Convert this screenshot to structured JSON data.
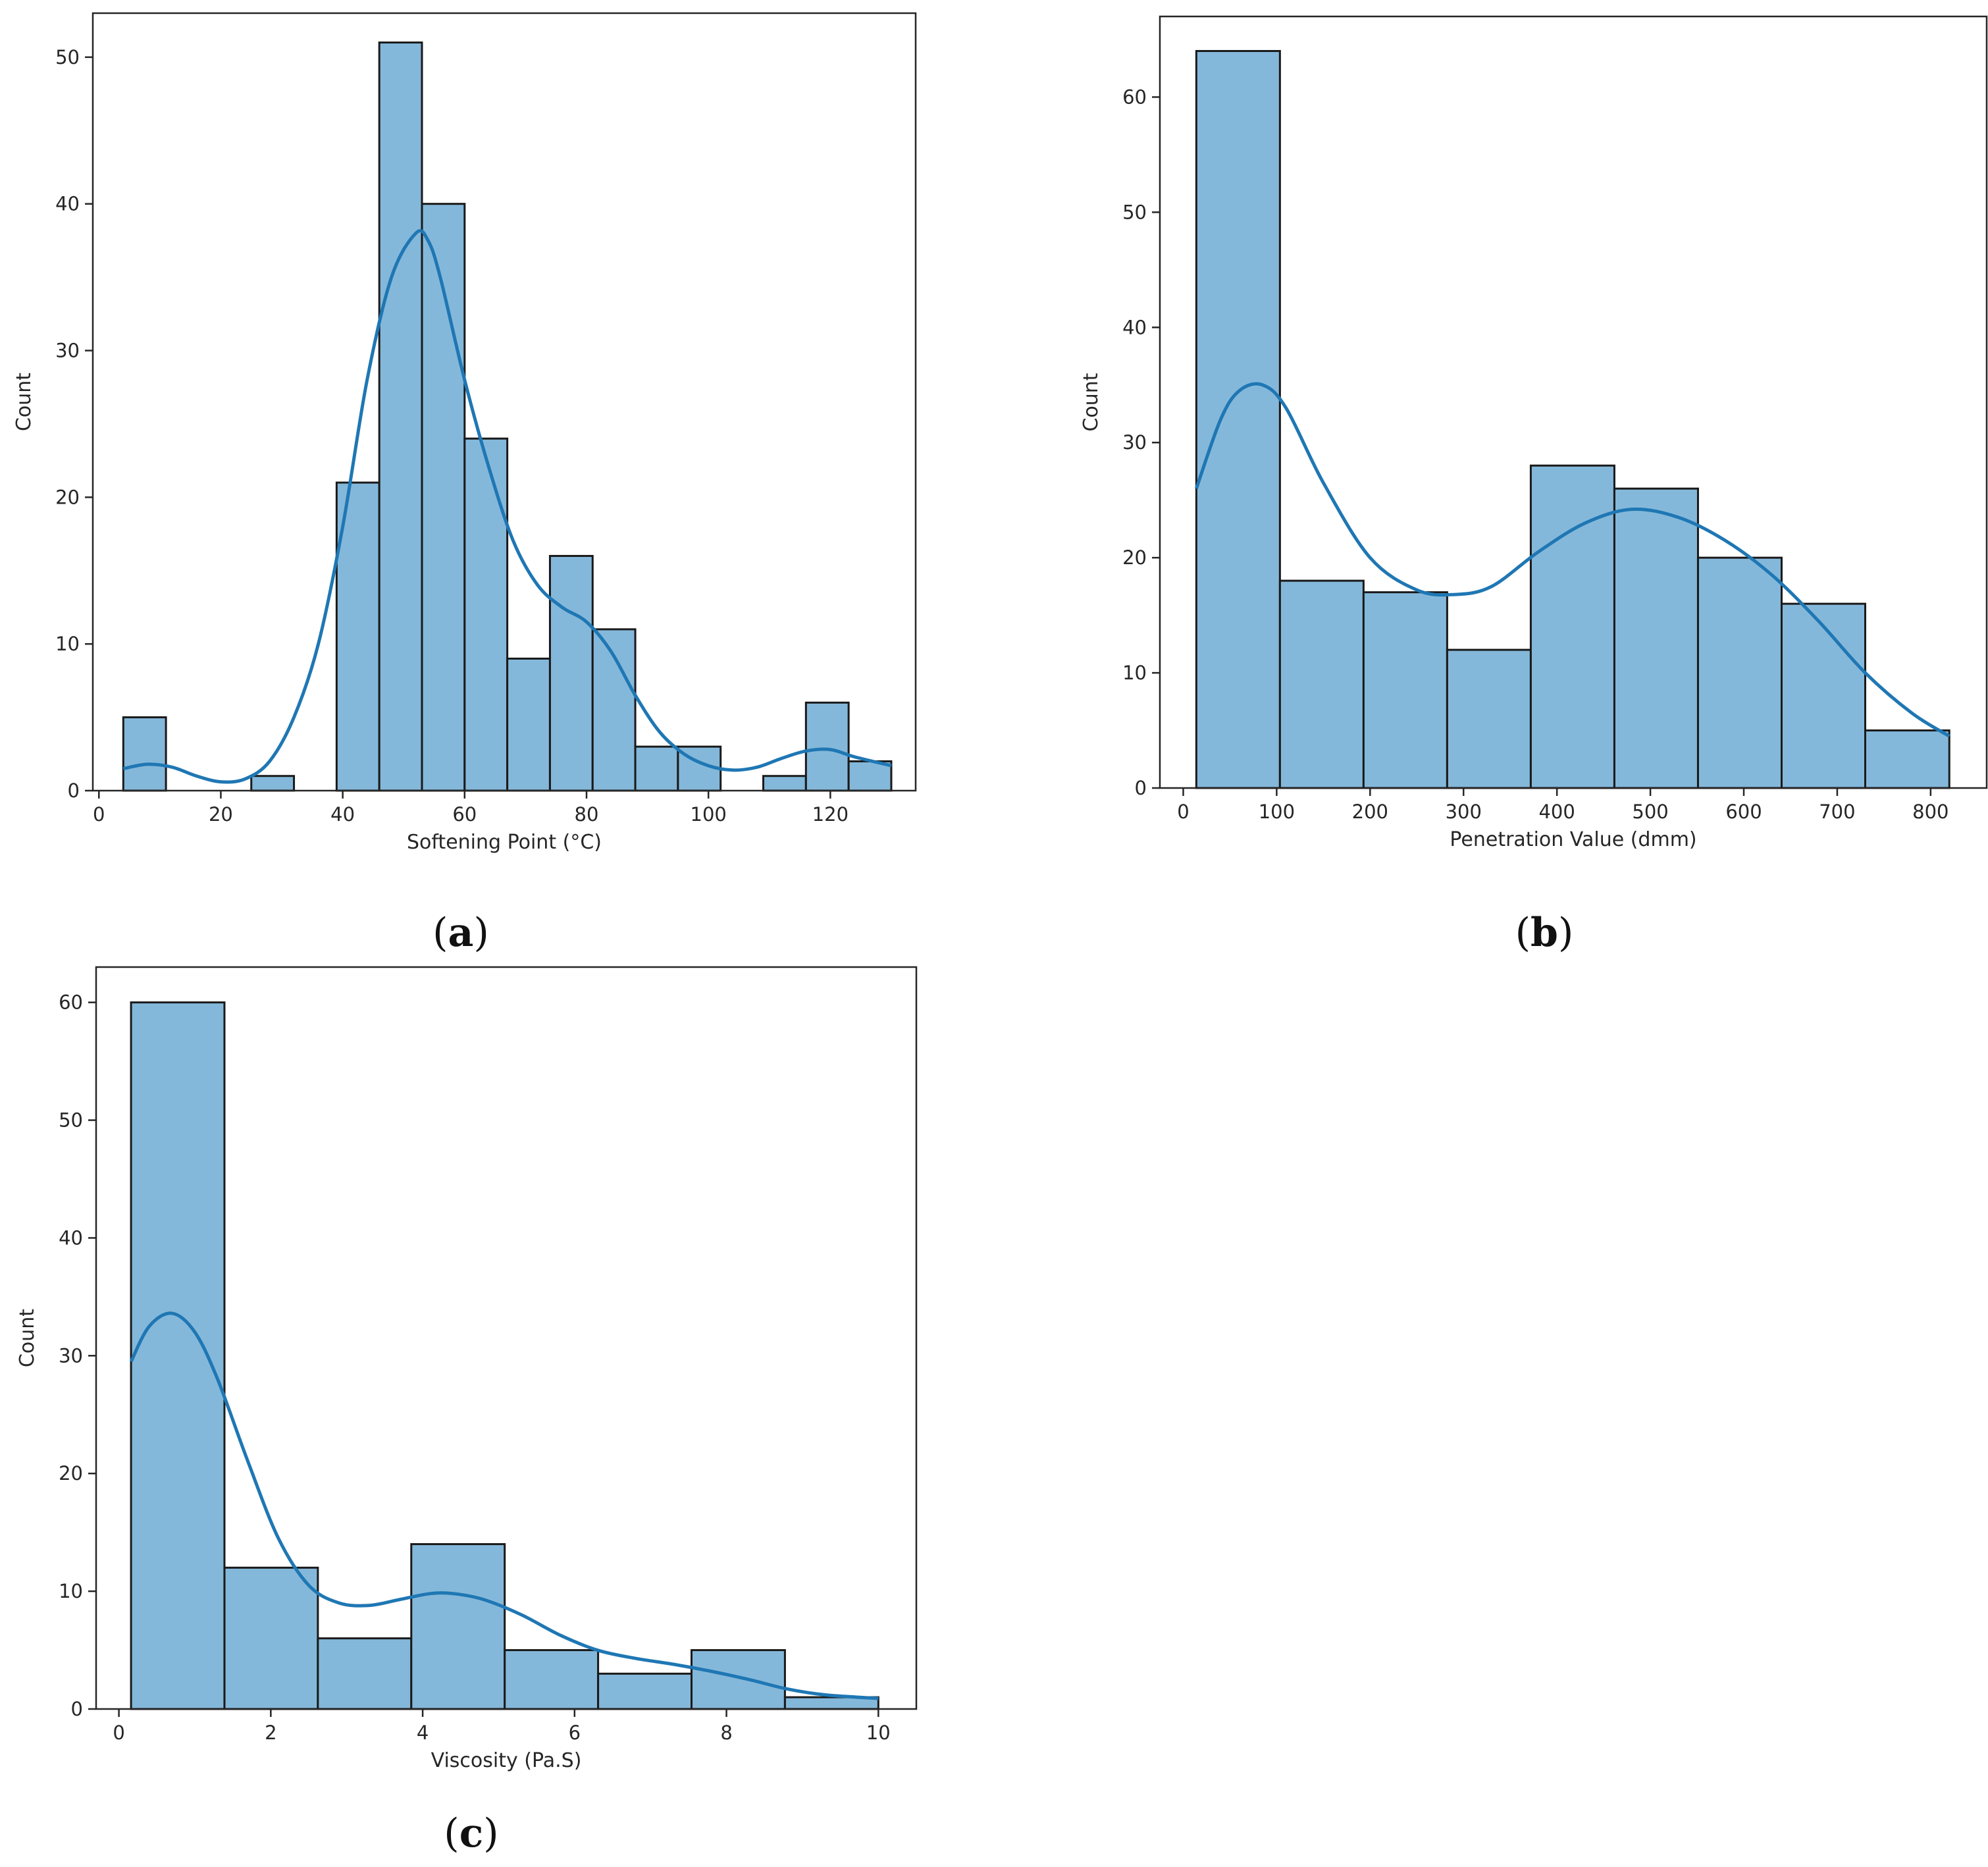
{
  "figure_labels": [
    {
      "open": "(",
      "letter": "a",
      "close": ")"
    },
    {
      "open": "(",
      "letter": "b",
      "close": ")"
    },
    {
      "open": "(",
      "letter": "c",
      "close": ")"
    }
  ],
  "colors": {
    "bar_fill": "#84b8da",
    "bar_edge": "#1a1a1a",
    "kde_line": "#1f77b4",
    "axis": "#262626"
  },
  "chart_data": [
    {
      "type": "bar",
      "subtype": "histogram_with_kde",
      "title": "",
      "xlabel": "Softening Point (°C)",
      "ylabel": "Count",
      "xlim": [
        -1,
        134
      ],
      "ylim": [
        0,
        53
      ],
      "xticks": [
        0,
        20,
        40,
        60,
        80,
        100,
        120
      ],
      "yticks": [
        0,
        10,
        20,
        30,
        40,
        50
      ],
      "bin_edges": [
        4,
        11,
        18,
        25,
        32,
        39,
        46,
        53,
        60,
        67,
        74,
        81,
        88,
        95,
        102,
        109,
        116,
        123,
        130
      ],
      "values": [
        5,
        0,
        0,
        1,
        0,
        21,
        51,
        40,
        24,
        9,
        16,
        11,
        3,
        3,
        0,
        1,
        6,
        2
      ],
      "kde": {
        "x": [
          4,
          8,
          12,
          16,
          20,
          24,
          28,
          32,
          36,
          40,
          44,
          48,
          52,
          54,
          56,
          60,
          64,
          68,
          72,
          76,
          80,
          84,
          88,
          92,
          96,
          100,
          104,
          108,
          112,
          116,
          120,
          124,
          130
        ],
        "y": [
          1.5,
          1.8,
          1.6,
          1.0,
          0.6,
          0.8,
          2.0,
          5.0,
          10.0,
          18.0,
          28.0,
          35.0,
          38.0,
          37.5,
          35.0,
          28.0,
          22.0,
          17.0,
          14.0,
          12.5,
          11.5,
          9.5,
          6.5,
          4.0,
          2.5,
          1.7,
          1.4,
          1.6,
          2.2,
          2.7,
          2.8,
          2.3,
          1.7
        ]
      }
    },
    {
      "type": "bar",
      "subtype": "histogram_with_kde",
      "title": "",
      "xlabel": "Penetration Value (dmm)",
      "ylabel": "Count",
      "xlim": [
        -25,
        860
      ],
      "ylim": [
        0,
        67
      ],
      "xticks": [
        0,
        100,
        200,
        300,
        400,
        500,
        600,
        700,
        800
      ],
      "yticks": [
        0,
        10,
        20,
        30,
        40,
        50,
        60
      ],
      "bin_edges": [
        14,
        103.5,
        193,
        282.5,
        372,
        461.5,
        551,
        640.5,
        730,
        820
      ],
      "values": [
        64,
        18,
        17,
        12,
        28,
        26,
        20,
        16,
        5
      ],
      "kde": {
        "x": [
          14,
          40,
          60,
          85,
          110,
          150,
          200,
          250,
          290,
          330,
          380,
          430,
          480,
          530,
          580,
          630,
          680,
          730,
          780,
          820
        ],
        "y": [
          26,
          32,
          34.5,
          35,
          33,
          26.5,
          20,
          17.2,
          16.8,
          17.5,
          20.5,
          23,
          24.2,
          23.5,
          21.5,
          18.5,
          14.5,
          10,
          6.5,
          4.5
        ]
      }
    },
    {
      "type": "bar",
      "subtype": "histogram_with_kde",
      "title": "",
      "xlabel": "Viscosity (Pa.S)",
      "ylabel": "Count",
      "xlim": [
        -0.3,
        10.5
      ],
      "ylim": [
        0,
        63
      ],
      "xticks": [
        0,
        2,
        4,
        6,
        8,
        10
      ],
      "yticks": [
        0,
        10,
        20,
        30,
        40,
        50,
        60
      ],
      "bin_edges": [
        0.16,
        1.39,
        2.62,
        3.85,
        5.08,
        6.31,
        7.54,
        8.77,
        10.0
      ],
      "values": [
        60,
        12,
        6,
        14,
        5,
        3,
        5,
        1
      ],
      "kde": {
        "x": [
          0.16,
          0.4,
          0.7,
          1.0,
          1.3,
          1.7,
          2.1,
          2.5,
          2.9,
          3.3,
          3.7,
          4.1,
          4.4,
          4.8,
          5.3,
          5.8,
          6.3,
          6.8,
          7.3,
          7.8,
          8.3,
          8.8,
          9.3,
          10.0
        ],
        "y": [
          29.5,
          32.5,
          33.6,
          32,
          28,
          21,
          14.5,
          10.5,
          9,
          8.8,
          9.3,
          9.8,
          9.8,
          9.3,
          8.0,
          6.3,
          5.0,
          4.3,
          3.8,
          3.2,
          2.5,
          1.7,
          1.2,
          0.9
        ]
      }
    }
  ]
}
